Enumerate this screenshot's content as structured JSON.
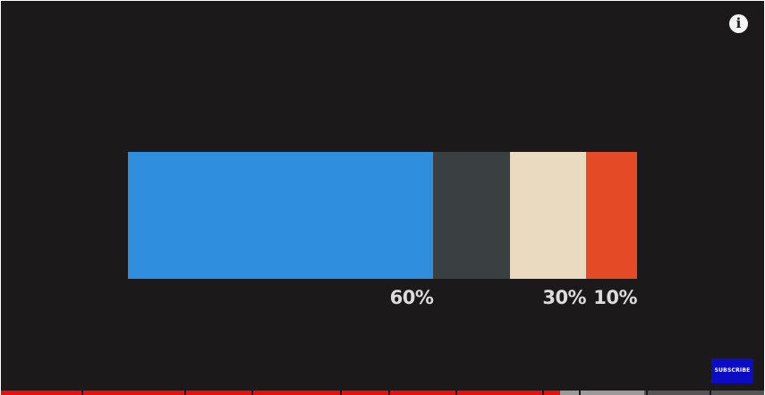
{
  "player": {
    "info_icon": "info-icon",
    "info_glyph": "i",
    "subscribe_label": "SUBSCRIBE",
    "progress": {
      "played_fraction": 0.733,
      "buffered_fraction": 0.843
    }
  },
  "chart_data": {
    "type": "bar",
    "orientation": "horizontal-stacked",
    "title": "",
    "xlabel": "",
    "ylabel": "",
    "segments": [
      {
        "value": 60,
        "color": "#2f8ede"
      },
      {
        "value": 15,
        "color": "#3a3f42"
      },
      {
        "value": 15,
        "color": "#eadac0"
      },
      {
        "value": 10,
        "color": "#e54a27"
      }
    ],
    "labels": [
      {
        "text": "60%",
        "at_cumulative": 60
      },
      {
        "text": "30%",
        "at_cumulative": 90
      },
      {
        "text": "10%",
        "at_cumulative": 100
      }
    ],
    "xlim": [
      0,
      100
    ]
  }
}
